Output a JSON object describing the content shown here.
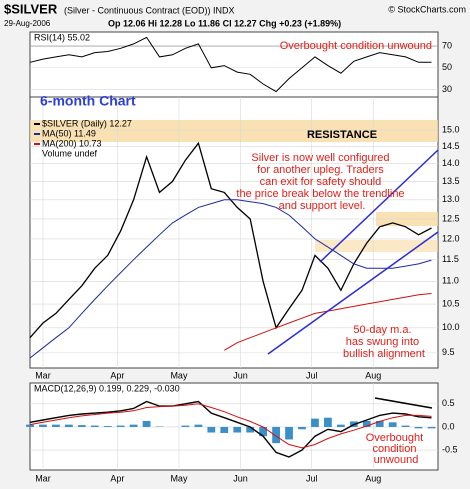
{
  "chart_data": {
    "type": "line",
    "title": "$SILVER",
    "subtitle": "(Silver - Continuous Contract (EOD)) INDX",
    "date": "29-Aug-2006",
    "quote": "Op 12.06 Hi 12.28 Lo 11.86 Cl 12.27 Chg +0.23 (+1.89%)",
    "credit": "© StockCharts.com",
    "chart_label": "6-month Chart",
    "annotations": [
      "Overbought condition unwound",
      "RESISTANCE",
      "Silver is now well configured for another upleg. Traders can exit for safety should the price break below the trendline and support level.",
      "50-day m.a. has swung into bullish alignment",
      "Overbought condition unwound"
    ],
    "x": [
      0,
      4,
      8,
      12,
      16,
      20,
      24,
      28,
      32,
      36,
      40,
      44,
      48,
      52,
      56,
      60,
      64,
      68,
      72,
      76,
      80,
      84,
      88,
      92,
      96,
      100,
      104,
      108,
      112,
      116,
      120,
      124
    ],
    "xlim": [
      0,
      126
    ],
    "xticks": [
      {
        "value": 4,
        "label": "Mar"
      },
      {
        "value": 27,
        "label": "Apr"
      },
      {
        "value": 46,
        "label": "May"
      },
      {
        "value": 65,
        "label": "Jun"
      },
      {
        "value": 87,
        "label": "Jul"
      },
      {
        "value": 106,
        "label": "Aug"
      }
    ],
    "log_scale": true,
    "ylim": [
      9.21,
      16.05
    ],
    "yticks": [
      {
        "value": 15,
        "label": "15.0"
      },
      {
        "value": 14.5,
        "label": "14.5"
      },
      {
        "value": 14,
        "label": "14.0"
      },
      {
        "value": 13.5,
        "label": "13.5"
      },
      {
        "value": 13,
        "label": "13.0"
      },
      {
        "value": 12.5,
        "label": "12.5"
      },
      {
        "value": 12,
        "label": "12.0"
      },
      {
        "value": 11.5,
        "label": "11.5"
      },
      {
        "value": 11,
        "label": "11.0"
      },
      {
        "value": 10.5,
        "label": "10.5"
      },
      {
        "value": 10,
        "label": "10.0"
      },
      {
        "value": 9.5,
        "label": "9.5"
      }
    ],
    "grid": true,
    "series": [
      {
        "name": "$SILVER (Daily) 12.27",
        "color": "#000000",
        "values": [
          9.8,
          10.1,
          10.3,
          10.6,
          10.9,
          11.3,
          11.6,
          12.2,
          13.0,
          14.2,
          13.2,
          13.5,
          14.1,
          14.6,
          13.3,
          13.2,
          12.8,
          12.5,
          11.0,
          10.0,
          10.4,
          10.8,
          11.6,
          11.3,
          10.8,
          11.4,
          11.9,
          12.3,
          12.4,
          12.3,
          12.1,
          12.27
        ]
      },
      {
        "name": "MA(50) 11.49",
        "color": "#1f2a9c",
        "values": [
          9.4,
          9.6,
          9.8,
          10.0,
          10.3,
          10.6,
          10.9,
          11.2,
          11.5,
          11.8,
          12.1,
          12.4,
          12.6,
          12.8,
          12.9,
          13.0,
          13.0,
          12.95,
          12.9,
          12.8,
          12.6,
          12.3,
          12.0,
          11.8,
          11.6,
          11.4,
          11.3,
          11.3,
          11.3,
          11.35,
          11.4,
          11.49
        ]
      },
      {
        "name": "MA(200) 10.73",
        "color": "#d01010",
        "values": [
          null,
          null,
          null,
          null,
          null,
          null,
          null,
          null,
          null,
          null,
          null,
          null,
          null,
          null,
          null,
          9.55,
          9.7,
          9.8,
          9.9,
          10.0,
          10.1,
          10.2,
          10.3,
          10.35,
          10.4,
          10.45,
          10.5,
          10.55,
          10.6,
          10.65,
          10.7,
          10.73
        ]
      }
    ],
    "volume_label": "Volume undef",
    "rsi": {
      "name": "RSI(14) 55.02",
      "ylim": [
        23,
        83
      ],
      "yticks": [
        70,
        50,
        30
      ],
      "values": [
        55,
        58,
        60,
        62,
        60,
        64,
        65,
        68,
        72,
        78,
        60,
        62,
        68,
        72,
        50,
        52,
        46,
        44,
        35,
        28,
        40,
        50,
        60,
        52,
        45,
        56,
        60,
        64,
        62,
        60,
        55,
        55.02
      ]
    },
    "macd": {
      "name": "MACD(12,26,9) 0.199, 0.229, -0.030",
      "ylim": [
        -0.93,
        0.95
      ],
      "yticks": [
        0.5,
        {
          "value": 0,
          "label": "0.0"
        },
        -0.5
      ],
      "macd": [
        0.1,
        0.15,
        0.2,
        0.25,
        0.28,
        0.3,
        0.32,
        0.35,
        0.4,
        0.55,
        0.45,
        0.45,
        0.5,
        0.55,
        0.3,
        0.2,
        0.1,
        0.0,
        -0.2,
        -0.55,
        -0.65,
        -0.5,
        -0.2,
        -0.05,
        -0.1,
        0.05,
        0.15,
        0.25,
        0.3,
        0.28,
        0.22,
        0.199
      ],
      "signal": [
        0.05,
        0.1,
        0.15,
        0.2,
        0.24,
        0.27,
        0.3,
        0.32,
        0.35,
        0.42,
        0.44,
        0.45,
        0.47,
        0.5,
        0.42,
        0.33,
        0.22,
        0.12,
        0.0,
        -0.2,
        -0.38,
        -0.45,
        -0.38,
        -0.25,
        -0.15,
        -0.07,
        0.02,
        0.12,
        0.2,
        0.25,
        0.25,
        0.229
      ],
      "histogram": [
        0.05,
        0.05,
        0.05,
        0.05,
        0.04,
        0.03,
        0.02,
        0.03,
        0.05,
        0.13,
        0.01,
        0,
        0.03,
        0.05,
        -0.12,
        -0.13,
        -0.12,
        -0.12,
        -0.2,
        -0.35,
        -0.27,
        -0.05,
        0.18,
        0.2,
        0.05,
        0.12,
        0.13,
        0.13,
        0.1,
        0.03,
        -0.03,
        -0.03
      ]
    }
  }
}
